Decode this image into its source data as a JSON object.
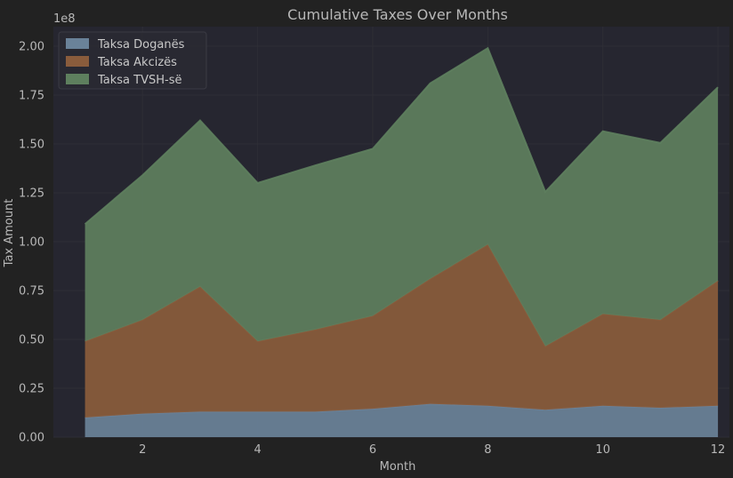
{
  "chart_data": {
    "type": "area",
    "stacked": true,
    "title": "Cumulative Taxes Over Months",
    "xlabel": "Month",
    "ylabel": "Tax Amount",
    "y_offset_label": "1e8",
    "x": [
      1,
      2,
      3,
      4,
      5,
      6,
      7,
      8,
      9,
      10,
      11,
      12
    ],
    "xticks": [
      2,
      4,
      6,
      8,
      10,
      12
    ],
    "xtick_labels": [
      "2",
      "4",
      "6",
      "8",
      "10",
      "12"
    ],
    "xlim": [
      0.45,
      12.2
    ],
    "ylim": [
      0,
      2.1
    ],
    "yticks": [
      0,
      0.25,
      0.5,
      0.75,
      1.0,
      1.25,
      1.5,
      1.75,
      2.0
    ],
    "ytick_labels": [
      "0.00",
      "0.25",
      "0.50",
      "0.75",
      "1.00",
      "1.25",
      "1.50",
      "1.75",
      "2.00"
    ],
    "y_unit_multiplier": 100000000,
    "grid": true,
    "legend_position": "top-left",
    "series": [
      {
        "name": "Taksa Doganës",
        "color": "#6a8299",
        "values": [
          0.1,
          0.12,
          0.13,
          0.13,
          0.13,
          0.145,
          0.17,
          0.16,
          0.14,
          0.16,
          0.15,
          0.16
        ]
      },
      {
        "name": "Taksa Akcizës",
        "color": "#8a5c3c",
        "values": [
          0.39,
          0.48,
          0.64,
          0.36,
          0.42,
          0.475,
          0.64,
          0.825,
          0.325,
          0.47,
          0.45,
          0.64
        ]
      },
      {
        "name": "Taksa TVSH-së",
        "color": "#5e7f5e",
        "values": [
          0.6,
          0.74,
          0.85,
          0.81,
          0.84,
          0.855,
          1.0,
          1.005,
          0.79,
          0.935,
          0.905,
          0.99
        ]
      }
    ],
    "colors": {
      "background": "#222222",
      "plot_background": "#262630",
      "grid": "#2e2e36",
      "text": "#b8b8b8"
    }
  }
}
